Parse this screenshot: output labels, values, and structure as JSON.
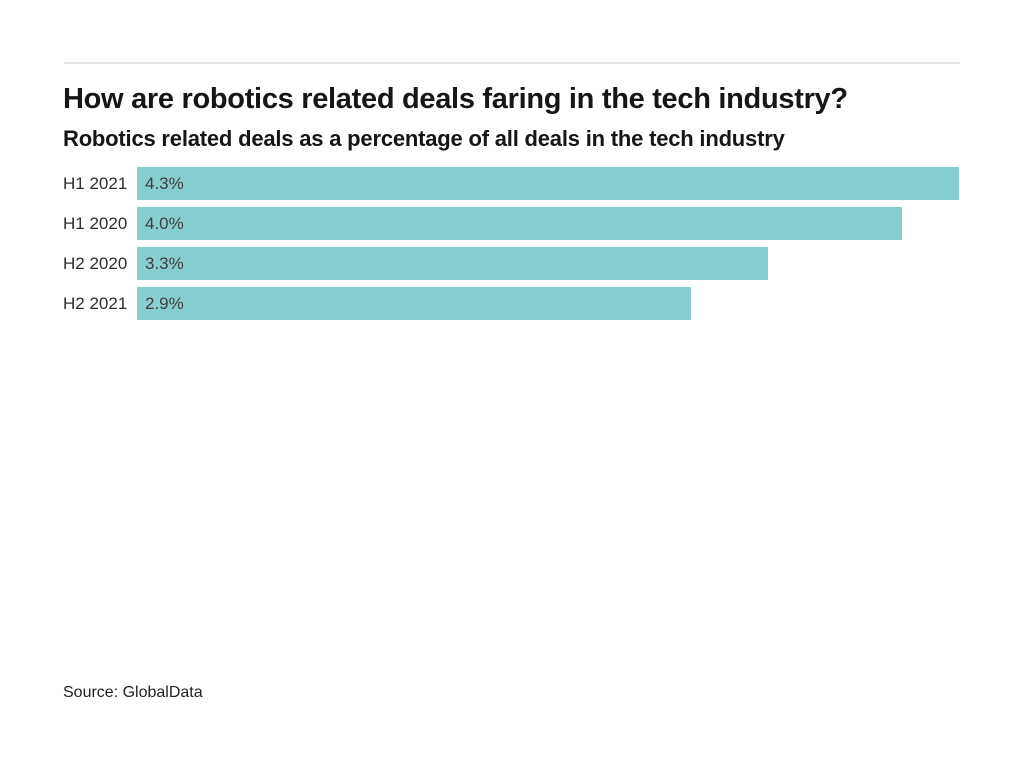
{
  "header": {
    "title": "How are robotics related deals faring in the tech industry?",
    "subtitle": "Robotics related deals as a percentage of all deals in the tech industry"
  },
  "chart_data": {
    "type": "bar",
    "orientation": "horizontal",
    "title": "How are robotics related deals faring in the tech industry?",
    "subtitle": "Robotics related deals as a percentage of all deals in the tech industry",
    "categories": [
      "H1 2021",
      "H1 2020",
      "H2 2020",
      "H2 2021"
    ],
    "values": [
      4.3,
      4.0,
      3.3,
      2.9
    ],
    "value_labels": [
      "4.3%",
      "4.0%",
      "3.3%",
      "2.9%"
    ],
    "xlim": [
      0,
      4.3
    ],
    "grid": false,
    "legend": false,
    "value_label_position": "inside-left",
    "bar_color": "#87CED1"
  },
  "footer": {
    "source": "Source: GlobalData"
  },
  "colors": {
    "background": "#ffffff",
    "bar": "#87CED1",
    "title_text": "#161616",
    "category_label_text": "#2e2e2e",
    "value_label_text": "#3f3f3f",
    "rule": "#e2e2e2"
  }
}
